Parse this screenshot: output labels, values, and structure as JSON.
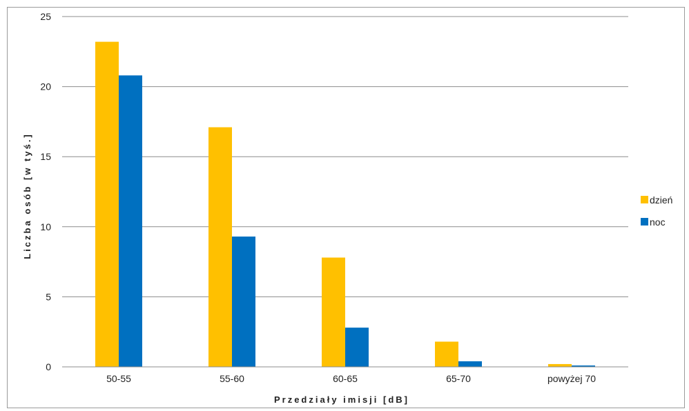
{
  "chart_data": {
    "type": "bar",
    "categories": [
      "50-55",
      "55-60",
      "60-65",
      "65-70",
      "powyżej 70"
    ],
    "series": [
      {
        "name": "dzień",
        "color": "#FFC000",
        "values": [
          23.2,
          17.1,
          7.8,
          1.8,
          0.2
        ]
      },
      {
        "name": "noc",
        "color": "#0070C0",
        "values": [
          20.8,
          9.3,
          2.8,
          0.4,
          0.1
        ]
      }
    ],
    "xlabel": "Przedziały imisji [dB]",
    "ylabel": "Liczba osób [w tyś.]",
    "ylim": [
      0,
      25
    ],
    "yticks": [
      "0",
      "5",
      "10",
      "15",
      "20",
      "25"
    ],
    "grid": true,
    "legend": "right"
  }
}
